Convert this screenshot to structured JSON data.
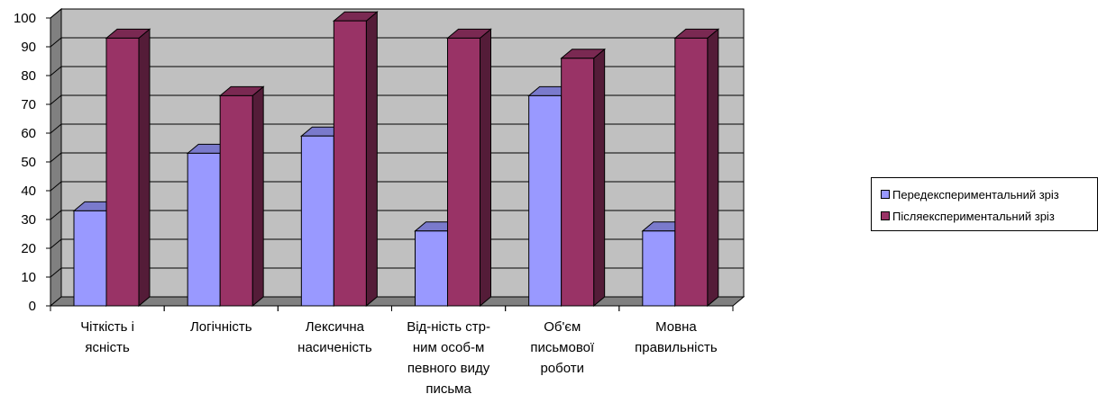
{
  "chart_data": {
    "type": "bar",
    "style": "3d-clustered-column",
    "categories": [
      [
        "Чіткість і",
        "ясність"
      ],
      [
        "Логічність"
      ],
      [
        "Лексична",
        "насиченість"
      ],
      [
        "Від-ність стр-",
        "ним особ-м",
        "певного виду",
        "письма"
      ],
      [
        "Об'єм",
        "письмової",
        "роботи"
      ],
      [
        "Мовна",
        "правильність"
      ]
    ],
    "series": [
      {
        "name": "Передекспериментальний зріз",
        "color": "#9999ff",
        "values": [
          33,
          53,
          59,
          26,
          73,
          26
        ]
      },
      {
        "name": "Післяекспериментальний зріз",
        "color": "#993366",
        "values": [
          93,
          73,
          99,
          93,
          86,
          93
        ]
      }
    ],
    "ylim": [
      0,
      100
    ],
    "yticks": [
      0,
      10,
      20,
      30,
      40,
      50,
      60,
      70,
      80,
      90,
      100
    ],
    "grid": true,
    "legend": "right",
    "wall_color": "#c0c0c0",
    "floor_color": "#808080"
  }
}
